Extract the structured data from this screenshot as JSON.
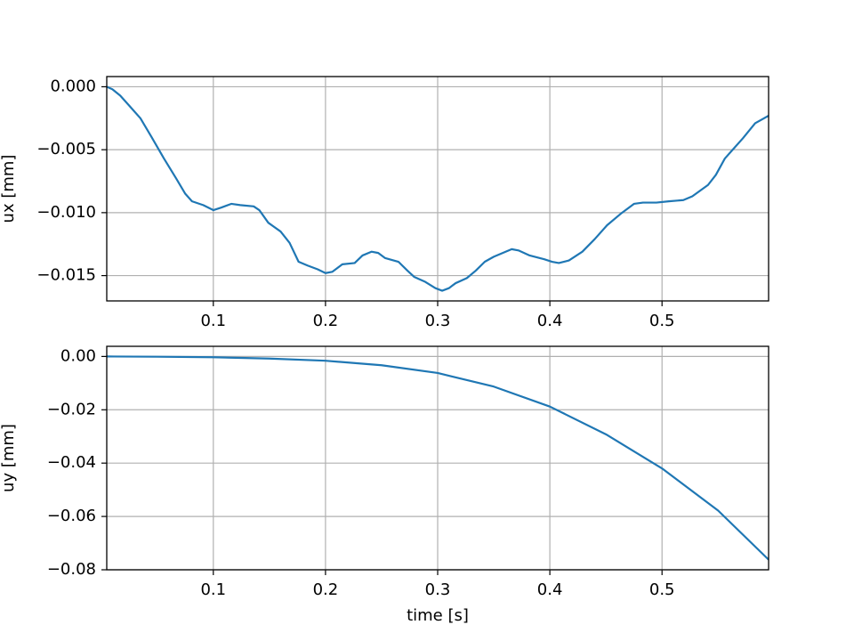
{
  "chart_data": [
    {
      "type": "line",
      "ylabel": "ux [mm]",
      "x": [
        0.005,
        0.01,
        0.017,
        0.025,
        0.035,
        0.045,
        0.056,
        0.067,
        0.075,
        0.081,
        0.091,
        0.1,
        0.107,
        0.116,
        0.124,
        0.136,
        0.141,
        0.149,
        0.16,
        0.168,
        0.176,
        0.184,
        0.193,
        0.2,
        0.206,
        0.215,
        0.226,
        0.233,
        0.241,
        0.247,
        0.253,
        0.265,
        0.273,
        0.279,
        0.289,
        0.298,
        0.304,
        0.31,
        0.316,
        0.326,
        0.334,
        0.342,
        0.35,
        0.358,
        0.366,
        0.372,
        0.382,
        0.395,
        0.402,
        0.408,
        0.417,
        0.429,
        0.44,
        0.451,
        0.463,
        0.475,
        0.483,
        0.495,
        0.506,
        0.519,
        0.527,
        0.541,
        0.548,
        0.556,
        0.563,
        0.572,
        0.583,
        0.595
      ],
      "series": [
        {
          "color": "#1f77b4",
          "values": [
            0,
            -0.0002,
            -0.0007,
            -0.0015,
            -0.0025,
            -0.004,
            -0.0057,
            -0.0073,
            -0.0085,
            -0.0091,
            -0.0094,
            -0.0098,
            -0.0096,
            -0.0093,
            -0.0094,
            -0.0095,
            -0.0098,
            -0.0108,
            -0.0115,
            -0.0124,
            -0.0139,
            -0.0142,
            -0.0145,
            -0.0148,
            -0.0147,
            -0.0141,
            -0.014,
            -0.0134,
            -0.0131,
            -0.0132,
            -0.0136,
            -0.0139,
            -0.0146,
            -0.0151,
            -0.0155,
            -0.016,
            -0.0162,
            -0.016,
            -0.0156,
            -0.0152,
            -0.0146,
            -0.0139,
            -0.0135,
            -0.0132,
            -0.0129,
            -0.013,
            -0.0134,
            -0.0137,
            -0.0139,
            -0.014,
            -0.0138,
            -0.0131,
            -0.0121,
            -0.011,
            -0.0101,
            -0.0093,
            -0.0092,
            -0.0092,
            -0.0091,
            -0.009,
            -0.0087,
            -0.0078,
            -0.007,
            -0.0057,
            -0.005,
            -0.0041,
            -0.0029,
            -0.0023
          ]
        }
      ],
      "xlim": [
        0.005,
        0.595
      ],
      "xticks": [
        0.1,
        0.2,
        0.3,
        0.4,
        0.5
      ],
      "ylim": [
        -0.01701,
        0.00081
      ],
      "yticks": [
        {
          "value": 0,
          "label": "0.000"
        },
        {
          "value": -0.005,
          "label": "−0.005"
        },
        {
          "value": -0.01,
          "label": "−0.010"
        },
        {
          "value": -0.015,
          "label": "−0.015"
        }
      ],
      "grid": true
    },
    {
      "type": "line",
      "ylabel": "uy [mm]",
      "xlabel": "time [s]",
      "x": [
        0.005,
        0.05,
        0.1,
        0.15,
        0.2,
        0.25,
        0.3,
        0.35,
        0.4,
        0.45,
        0.5,
        0.55,
        0.595
      ],
      "series": [
        {
          "color": "#1f77b4",
          "values": [
            0,
            -0.0001,
            -0.0003,
            -0.0008,
            -0.0016,
            -0.0033,
            -0.0062,
            -0.0113,
            -0.0188,
            -0.0292,
            -0.042,
            -0.0578,
            -0.0762
          ]
        }
      ],
      "xlim": [
        0.005,
        0.595
      ],
      "xticks": [
        0.1,
        0.2,
        0.3,
        0.4,
        0.5
      ],
      "ylim": [
        -0.08,
        0.0038
      ],
      "yticks": [
        {
          "value": 0,
          "label": "0.00"
        },
        {
          "value": -0.02,
          "label": "−0.02"
        },
        {
          "value": -0.04,
          "label": "−0.04"
        },
        {
          "value": -0.06,
          "label": "−0.06"
        },
        {
          "value": -0.08,
          "label": "−0.08"
        }
      ],
      "grid": true
    }
  ]
}
